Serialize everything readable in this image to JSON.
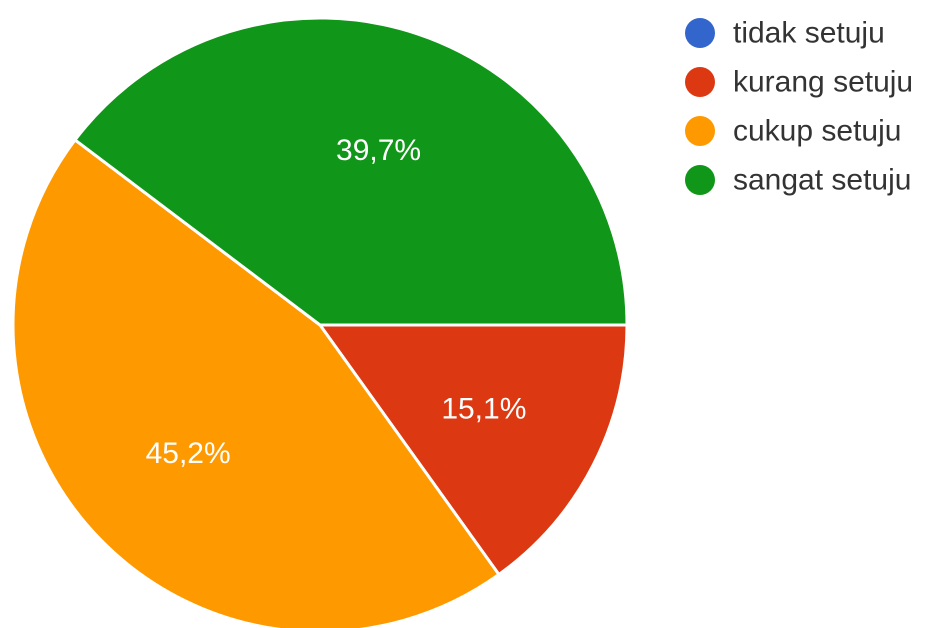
{
  "chart_data": {
    "type": "pie",
    "start_angle_deg": 90,
    "direction": "clockwise",
    "legend_position": "top-right",
    "slices": [
      {
        "label": "tidak setuju",
        "value": 0.0,
        "display": "",
        "color": "#3366cc"
      },
      {
        "label": "kurang setuju",
        "value": 15.1,
        "display": "15,1%",
        "color": "#dc3912"
      },
      {
        "label": "cukup setuju",
        "value": 45.2,
        "display": "45,2%",
        "color": "#ff9900"
      },
      {
        "label": "sangat setuju",
        "value": 39.7,
        "display": "39,7%",
        "color": "#109618"
      }
    ]
  }
}
